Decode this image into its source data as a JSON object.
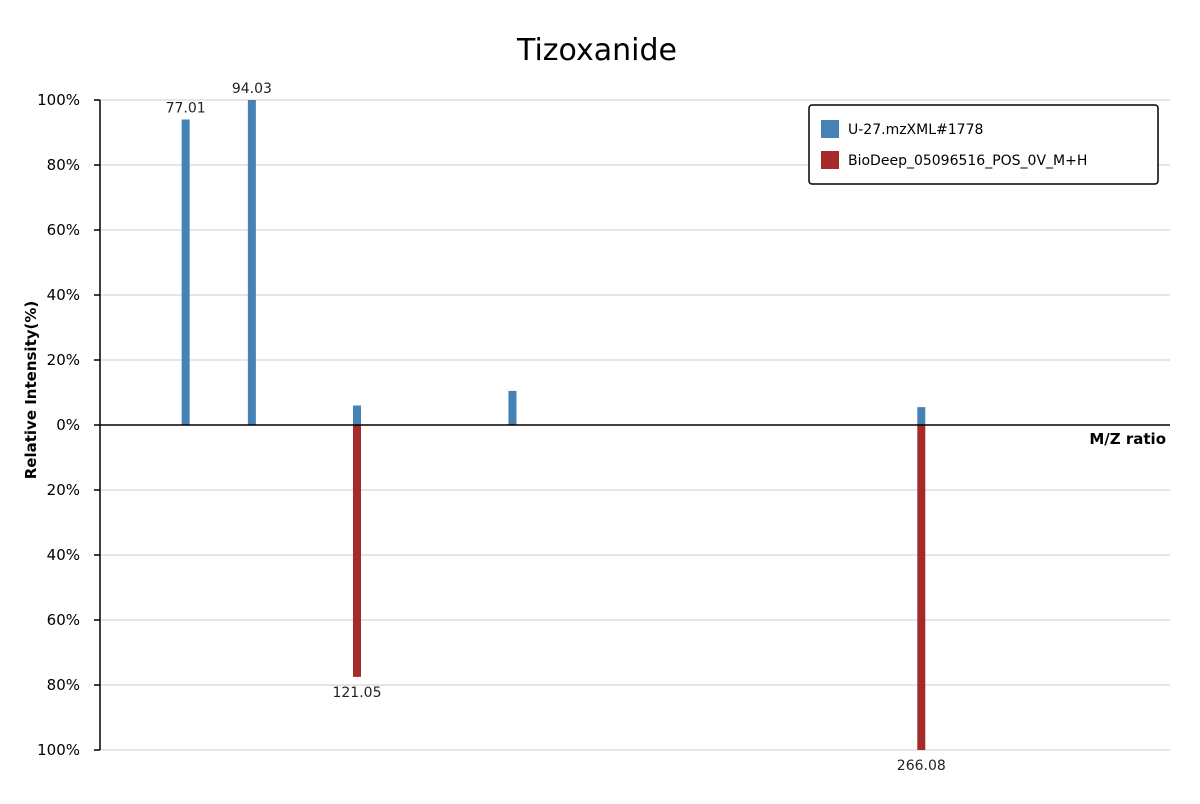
{
  "chart_data": {
    "type": "bar",
    "title": "Tizoxanide",
    "xlabel": "M/Z ratio",
    "ylabel": "Relative Intensity(%)",
    "xlim": [
      55,
      330
    ],
    "ylim": [
      -100,
      100
    ],
    "y_ticks": [
      {
        "value": 100,
        "label": "100%"
      },
      {
        "value": 80,
        "label": "80%"
      },
      {
        "value": 60,
        "label": "60%"
      },
      {
        "value": 40,
        "label": "40%"
      },
      {
        "value": 20,
        "label": "20%"
      },
      {
        "value": 0,
        "label": "0%"
      },
      {
        "value": -20,
        "label": "20%"
      },
      {
        "value": -40,
        "label": "40%"
      },
      {
        "value": -60,
        "label": "60%"
      },
      {
        "value": -80,
        "label": "80%"
      },
      {
        "value": -100,
        "label": "100%"
      }
    ],
    "grid": true,
    "legend_position": "top-right",
    "series": [
      {
        "name": "U-27.mzXML#1778",
        "color": "#4682b4",
        "direction": "up",
        "peaks": [
          {
            "mz": 77.01,
            "intensity": 94,
            "label": "77.01"
          },
          {
            "mz": 94.03,
            "intensity": 100,
            "label": "94.03"
          },
          {
            "mz": 121.05,
            "intensity": 6,
            "label": ""
          },
          {
            "mz": 161.0,
            "intensity": 10.5,
            "label": ""
          },
          {
            "mz": 266.08,
            "intensity": 5.5,
            "label": ""
          }
        ]
      },
      {
        "name": "BioDeep_05096516_POS_0V_M+H",
        "color": "#a52a2a",
        "direction": "down",
        "peaks": [
          {
            "mz": 121.05,
            "intensity": 77.5,
            "label": "121.05"
          },
          {
            "mz": 266.08,
            "intensity": 100,
            "label": "266.08"
          }
        ]
      }
    ]
  }
}
